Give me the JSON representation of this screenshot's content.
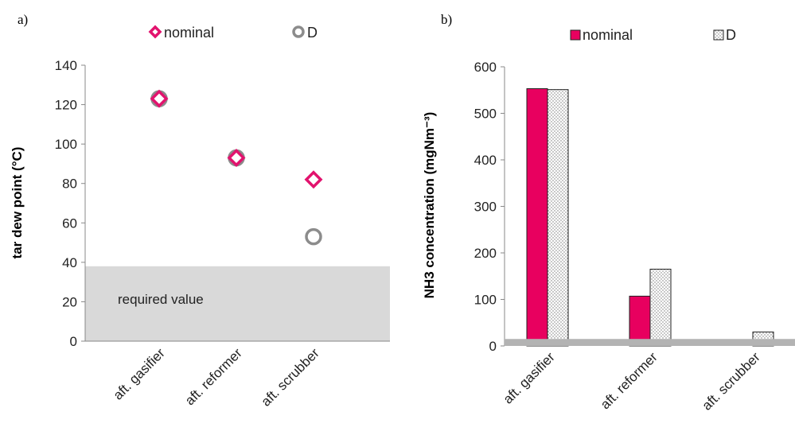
{
  "chart_data": [
    {
      "panel": "a)",
      "type": "scatter",
      "ylabel": "tar dew point (°C)",
      "xlabel": "",
      "categories": [
        "aft. gasifier",
        "aft. reformer",
        "aft. scrubber"
      ],
      "ylim": [
        0,
        140
      ],
      "yticks": [
        0,
        20,
        40,
        60,
        80,
        100,
        120,
        140
      ],
      "legend_position": "top",
      "series": [
        {
          "name": "nominal",
          "marker": "diamond",
          "color": "#e2136e",
          "values": [
            123,
            93,
            82
          ]
        },
        {
          "name": "D",
          "marker": "circle",
          "color": "#8c8c8c",
          "values": [
            123,
            93,
            53
          ]
        }
      ],
      "band": {
        "from": 0,
        "to": 38,
        "color": "#d9d9d9",
        "label": "required value"
      }
    },
    {
      "panel": "b)",
      "type": "bar",
      "ylabel": "NH3 concentration (mgNm⁻³)",
      "xlabel": "",
      "categories": [
        "aft. gasifier",
        "aft. reformer",
        "aft. scrubber"
      ],
      "ylim": [
        0,
        600
      ],
      "yticks": [
        0,
        100,
        200,
        300,
        400,
        500,
        600
      ],
      "legend_position": "top",
      "series": [
        {
          "name": "nominal",
          "fill": "solid",
          "color": "#e8005f",
          "values": [
            553,
            107,
            0
          ]
        },
        {
          "name": "D",
          "fill": "dotted",
          "color": "#ffffff",
          "values": [
            551,
            165,
            30
          ]
        }
      ],
      "band": {
        "from": 0,
        "to": 15,
        "color": "#b3b3b3"
      }
    }
  ]
}
